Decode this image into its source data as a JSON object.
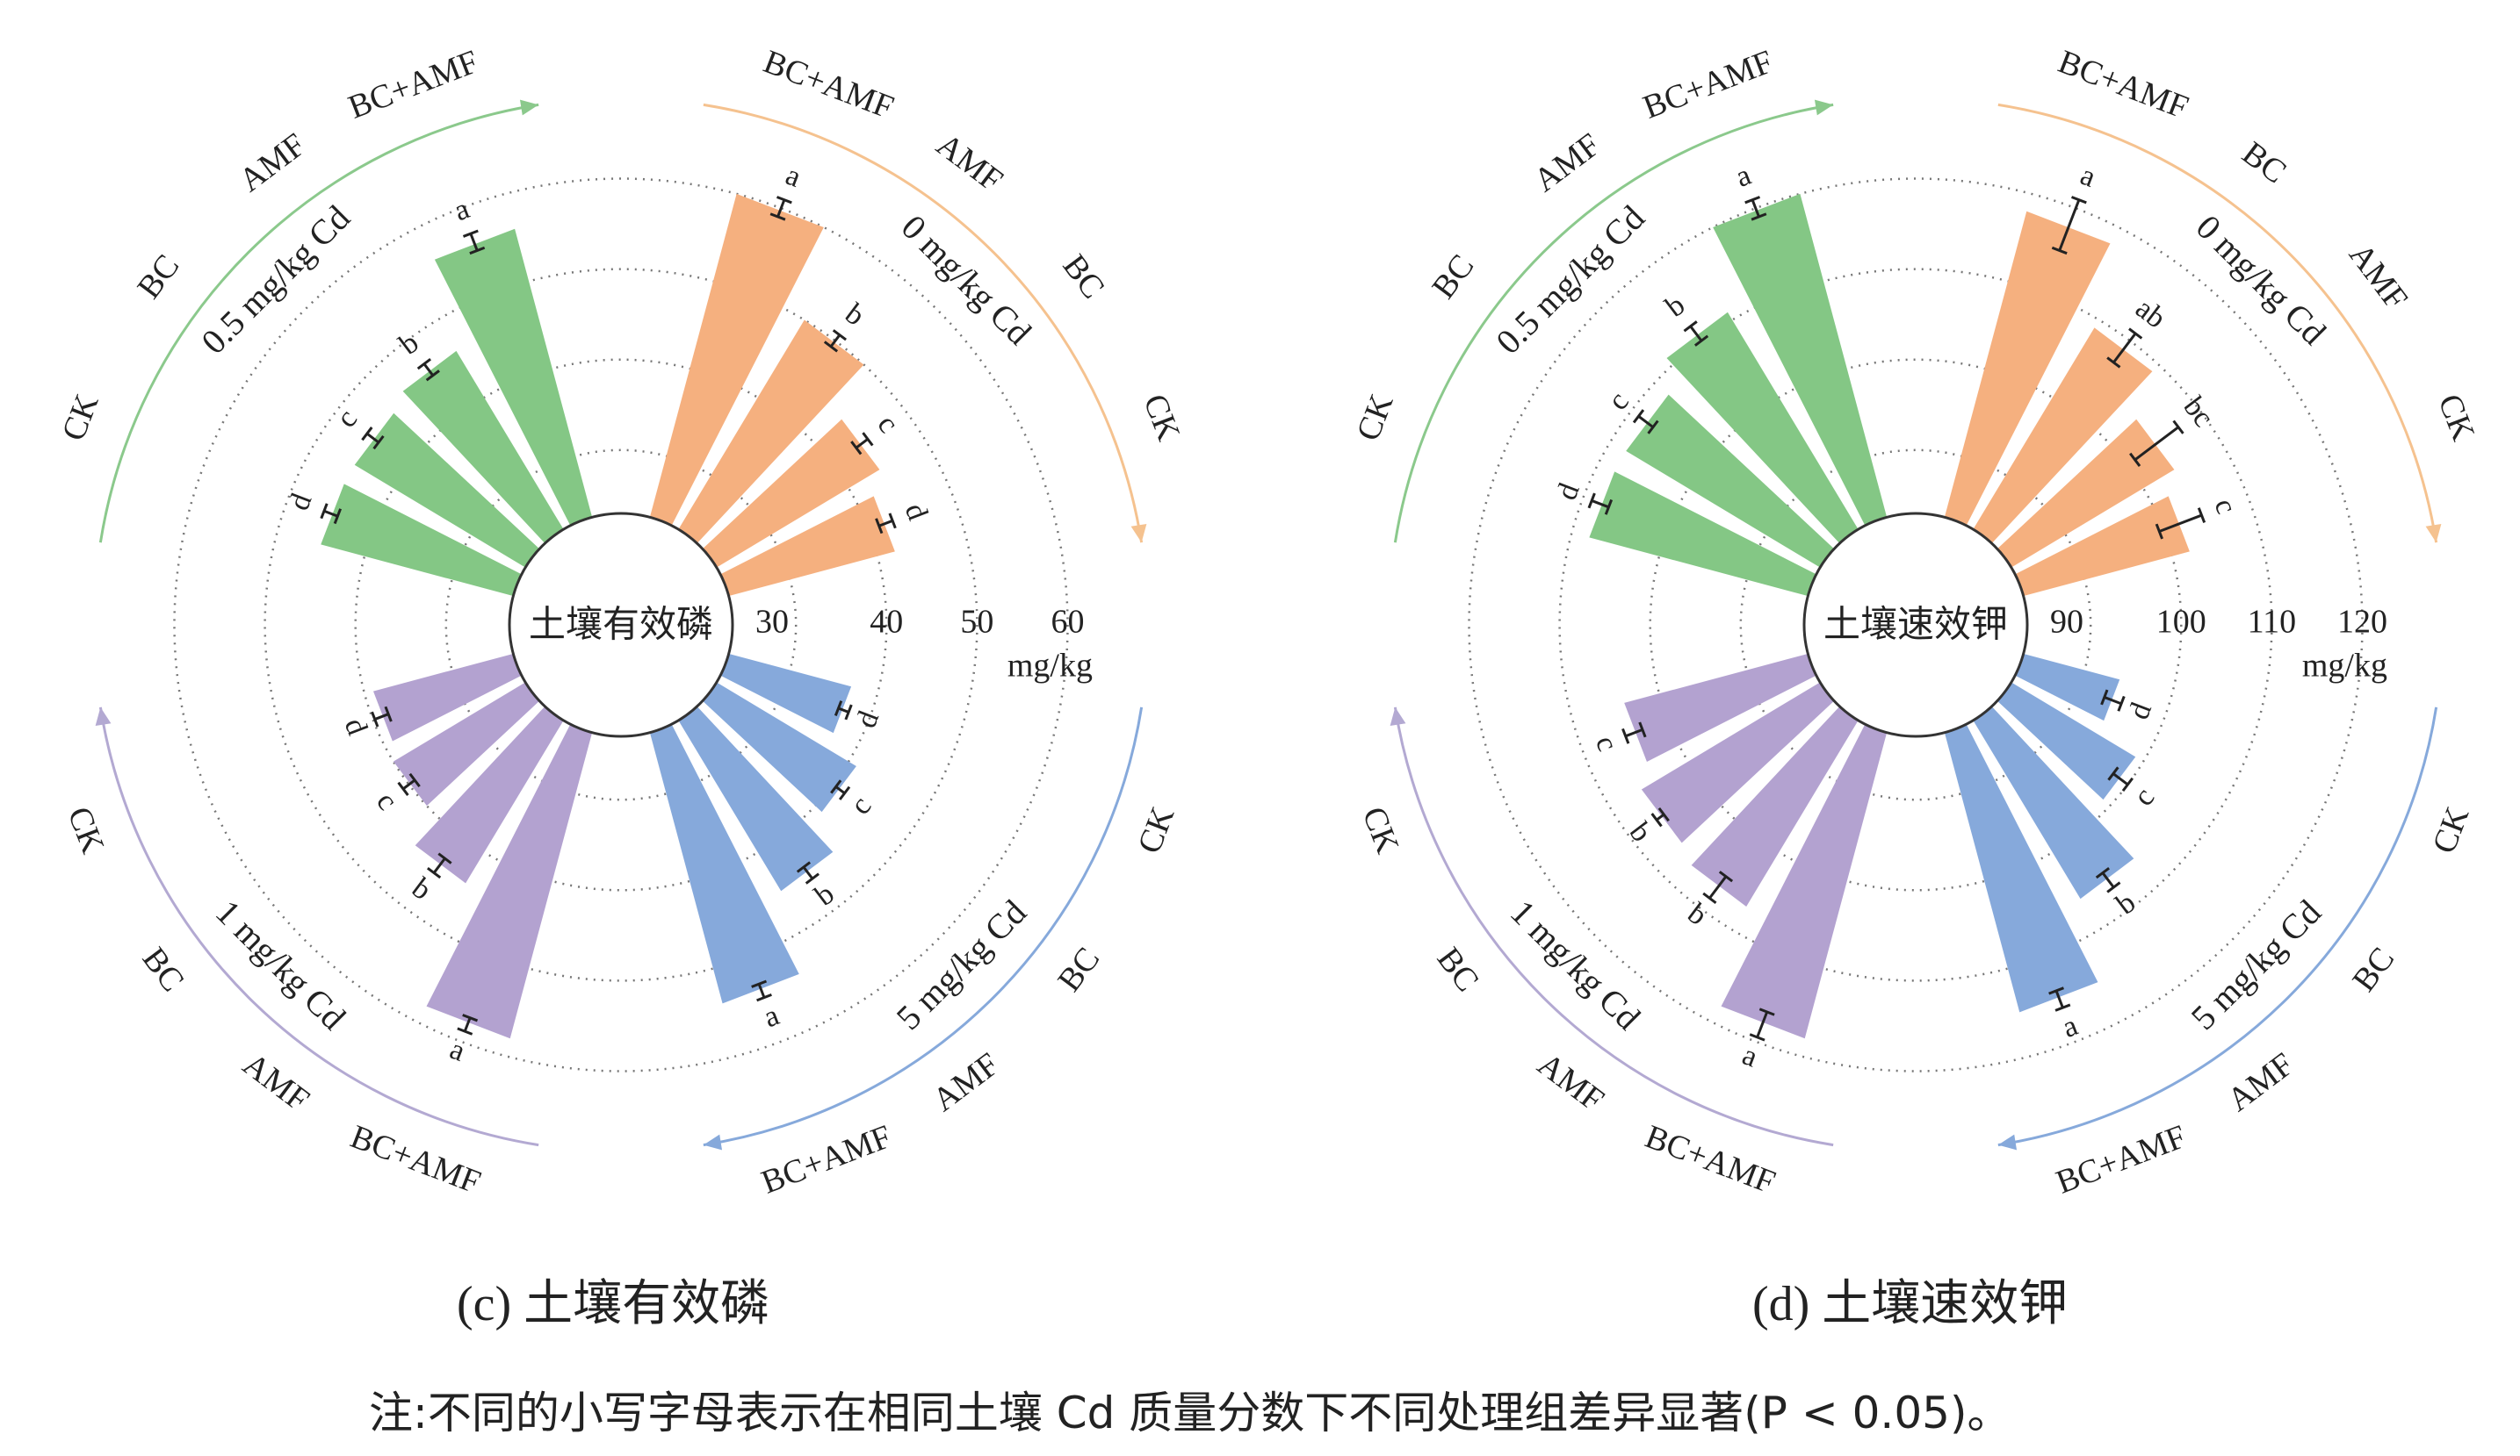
{
  "chart_data": [
    {
      "type": "polar-bar",
      "caption": "(c) 土壤有效磷",
      "center_label": "土壤有效磷",
      "unit": "mg/kg",
      "radial_ticks": [
        30,
        40,
        50,
        60
      ],
      "radial_range": [
        23,
        65
      ],
      "groups": [
        {
          "name": "0 mg/kg Cd",
          "color": "#F5B07F",
          "arrow_color": "#F5C28F",
          "categories": [
            "BC+AMF",
            "AMF",
            "BC",
            "CK"
          ],
          "values": [
            60,
            50,
            44,
            42
          ],
          "errors": [
            1.0,
            0.8,
            0.8,
            0.8
          ],
          "letters": [
            "a",
            "b",
            "c",
            "d"
          ]
        },
        {
          "name": "5 mg/kg Cd",
          "color": "#86A9DB",
          "arrow_color": "#86A9DB",
          "categories": [
            "CK",
            "BC",
            "AMF",
            "BC+AMF"
          ],
          "values": [
            37,
            41,
            45,
            54
          ],
          "errors": [
            0.6,
            0.6,
            0.8,
            0.8
          ],
          "letters": [
            "d",
            "c",
            "b",
            "a"
          ]
        },
        {
          "name": "1 mg/kg Cd",
          "color": "#B3A2D0",
          "arrow_color": "#B3A9D2",
          "categories": [
            "BC+AMF",
            "AMF",
            "BC",
            "CK"
          ],
          "values": [
            58,
            44,
            40,
            39
          ],
          "errors": [
            0.8,
            1.0,
            0.8,
            0.8
          ],
          "letters": [
            "a",
            "b",
            "c",
            "d"
          ]
        },
        {
          "name": "0.5 mg/kg Cd",
          "color": "#84C785",
          "arrow_color": "#8BC98C",
          "categories": [
            "CK",
            "BC",
            "AMF",
            "BC+AMF"
          ],
          "values": [
            45,
            45,
            46,
            56
          ],
          "errors": [
            0.8,
            0.8,
            0.8,
            1.0
          ],
          "letters": [
            "d",
            "c",
            "b",
            "a"
          ]
        }
      ]
    },
    {
      "type": "polar-bar",
      "caption": "(d) 土壤速效钾",
      "center_label": "土壤速效钾",
      "unit": "mg/kg",
      "radial_ticks": [
        90,
        100,
        110,
        120
      ],
      "radial_range": [
        83,
        125
      ],
      "groups": [
        {
          "name": "0 mg/kg Cd",
          "color": "#F5B07F",
          "arrow_color": "#F5C28F",
          "categories": [
            "BC+AMF",
            "BC",
            "AMF",
            "CK"
          ],
          "values": [
            118,
            109,
            104,
            102
          ],
          "errors": [
            3.0,
            2.0,
            3.0,
            2.5
          ],
          "letters": [
            "a",
            "ab",
            "bc",
            "c"
          ]
        },
        {
          "name": "5 mg/kg Cd",
          "color": "#86A9DB",
          "arrow_color": "#86A9DB",
          "categories": [
            "CK",
            "BC",
            "AMF",
            "BC+AMF"
          ],
          "values": [
            94,
            99,
            106,
            115
          ],
          "errors": [
            1.0,
            1.0,
            1.0,
            1.0
          ],
          "letters": [
            "d",
            "c",
            "b",
            "a"
          ]
        },
        {
          "name": "1 mg/kg Cd",
          "color": "#B3A2D0",
          "arrow_color": "#B3A9D2",
          "categories": [
            "BC+AMF",
            "AMF",
            "BC",
            "CK"
          ],
          "values": [
            118,
            107,
            106,
            104
          ],
          "errors": [
            1.5,
            1.5,
            0.5,
            1.0
          ],
          "letters": [
            "a",
            "b",
            "b",
            "c"
          ]
        },
        {
          "name": "0.5 mg/kg Cd",
          "color": "#84C785",
          "arrow_color": "#8BC98C",
          "categories": [
            "CK",
            "BC",
            "AMF",
            "BC+AMF"
          ],
          "values": [
            108,
            108,
            111,
            120
          ],
          "errors": [
            1.0,
            1.0,
            1.0,
            1.0
          ],
          "letters": [
            "d",
            "c",
            "b",
            "a"
          ]
        }
      ]
    }
  ],
  "captions": {
    "c": "(c) 土壤有效磷",
    "d": "(d) 土壤速效钾"
  },
  "footnote": "注:不同的小写字母表示在相同土壤 Cd 质量分数下不同处理组差异显著(P < 0.05)。"
}
